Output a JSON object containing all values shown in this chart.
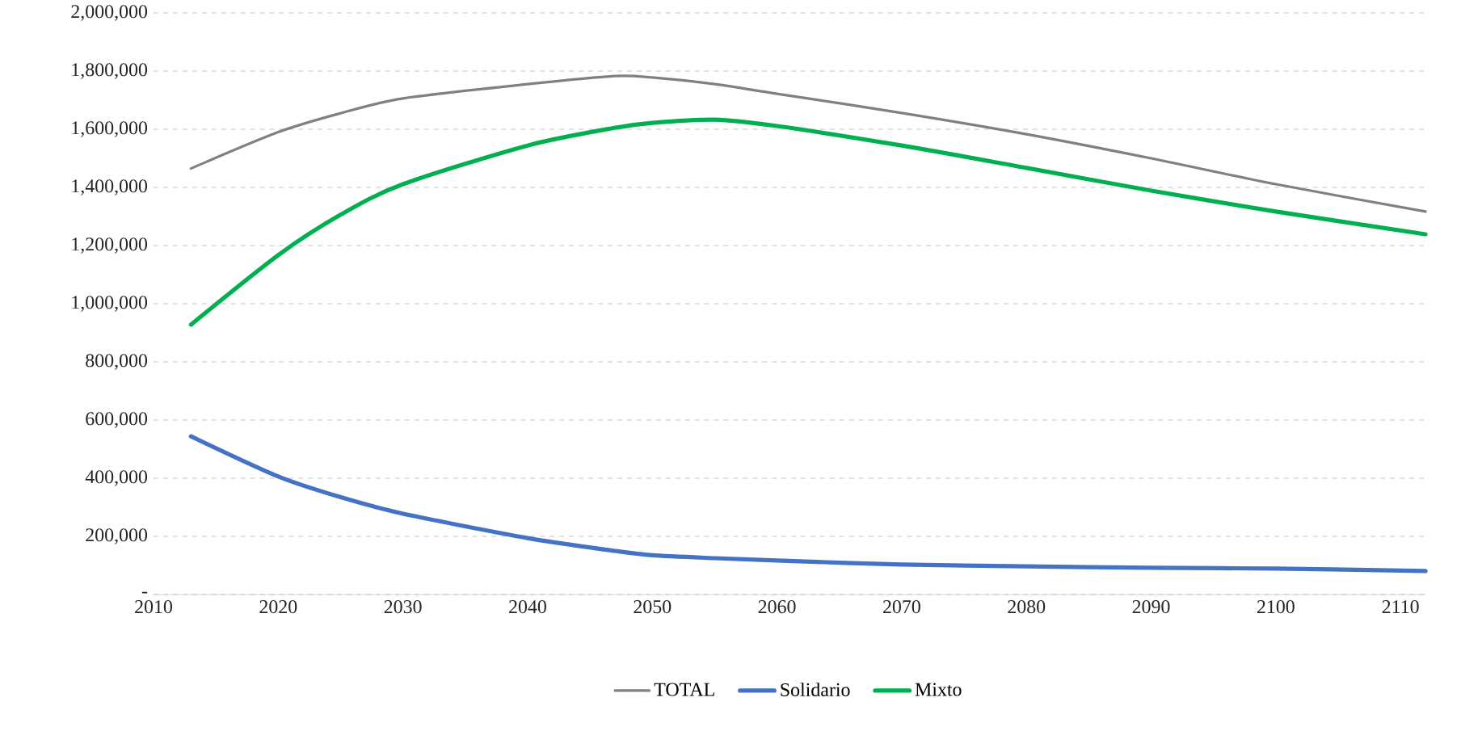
{
  "chart_data": {
    "type": "line",
    "x": [
      2013,
      2020,
      2025,
      2030,
      2040,
      2047,
      2050,
      2055,
      2060,
      2070,
      2080,
      2090,
      2100,
      2112
    ],
    "series": [
      {
        "name": "TOTAL",
        "color": "#808080",
        "values": [
          1465000,
          1590000,
          1655000,
          1706000,
          1755000,
          1783000,
          1778000,
          1755000,
          1722000,
          1656000,
          1583000,
          1500000,
          1411000,
          1317000
        ]
      },
      {
        "name": "Solidario",
        "color": "#4472c4",
        "values": [
          544000,
          406000,
          335000,
          278000,
          194000,
          150000,
          135000,
          125000,
          117000,
          103000,
          97000,
          92000,
          89000,
          81000
        ]
      },
      {
        "name": "Mixto",
        "color": "#00b050",
        "values": [
          928000,
          1167000,
          1306000,
          1411000,
          1544000,
          1605000,
          1622000,
          1633000,
          1611000,
          1544000,
          1467000,
          1389000,
          1317000,
          1239000
        ]
      }
    ],
    "xlim": [
      2010,
      2112
    ],
    "xticks": [
      2010,
      2020,
      2030,
      2040,
      2050,
      2060,
      2070,
      2080,
      2090,
      2100,
      2110
    ],
    "ylim": [
      0,
      2000000
    ],
    "yticks": [
      {
        "value": 0,
        "label": "-"
      },
      {
        "value": 200000,
        "label": "200,000"
      },
      {
        "value": 400000,
        "label": "400,000"
      },
      {
        "value": 600000,
        "label": "600,000"
      },
      {
        "value": 800000,
        "label": "800,000"
      },
      {
        "value": 1000000,
        "label": "1,000,000"
      },
      {
        "value": 1200000,
        "label": "1,200,000"
      },
      {
        "value": 1400000,
        "label": "1,400,000"
      },
      {
        "value": 1600000,
        "label": "1,600,000"
      },
      {
        "value": 1800000,
        "label": "1,800,000"
      },
      {
        "value": 2000000,
        "label": "2,000,000"
      }
    ],
    "grid": "y",
    "legend": "bottom",
    "marker": "none",
    "line_style": "solid"
  }
}
